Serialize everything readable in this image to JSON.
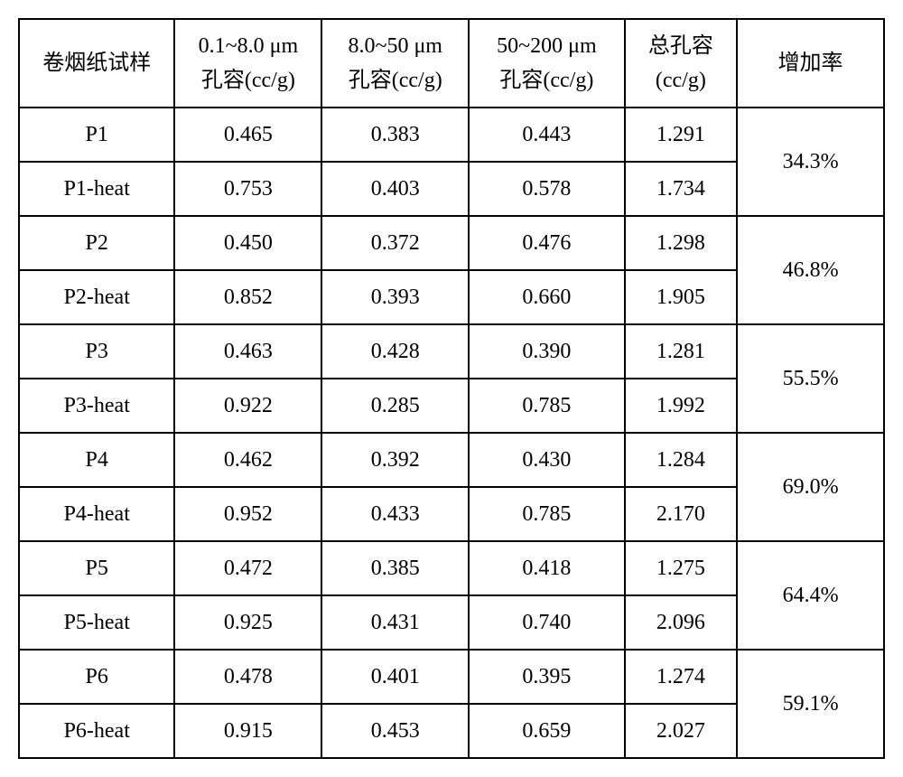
{
  "columns": {
    "sample": "卷烟纸试样",
    "range1": {
      "line1": "0.1~8.0 μm",
      "line2": "孔容(cc/g)"
    },
    "range2": {
      "line1": "8.0~50 μm",
      "line2": "孔容(cc/g)"
    },
    "range3": {
      "line1": "50~200 μm",
      "line2": "孔容(cc/g)"
    },
    "total": {
      "line1": "总孔容",
      "line2": "(cc/g)"
    },
    "rate": "增加率"
  },
  "groups": [
    {
      "rate": "34.3%",
      "rows": [
        {
          "sample": "P1",
          "r1": "0.465",
          "r2": "0.383",
          "r3": "0.443",
          "total": "1.291"
        },
        {
          "sample": "P1-heat",
          "r1": "0.753",
          "r2": "0.403",
          "r3": "0.578",
          "total": "1.734"
        }
      ]
    },
    {
      "rate": "46.8%",
      "rows": [
        {
          "sample": "P2",
          "r1": "0.450",
          "r2": "0.372",
          "r3": "0.476",
          "total": "1.298"
        },
        {
          "sample": "P2-heat",
          "r1": "0.852",
          "r2": "0.393",
          "r3": "0.660",
          "total": "1.905"
        }
      ]
    },
    {
      "rate": "55.5%",
      "rows": [
        {
          "sample": "P3",
          "r1": "0.463",
          "r2": "0.428",
          "r3": "0.390",
          "total": "1.281"
        },
        {
          "sample": "P3-heat",
          "r1": "0.922",
          "r2": "0.285",
          "r3": "0.785",
          "total": "1.992"
        }
      ]
    },
    {
      "rate": "69.0%",
      "rows": [
        {
          "sample": "P4",
          "r1": "0.462",
          "r2": "0.392",
          "r3": "0.430",
          "total": "1.284"
        },
        {
          "sample": "P4-heat",
          "r1": "0.952",
          "r2": "0.433",
          "r3": "0.785",
          "total": "2.170"
        }
      ]
    },
    {
      "rate": "64.4%",
      "rows": [
        {
          "sample": "P5",
          "r1": "0.472",
          "r2": "0.385",
          "r3": "0.418",
          "total": "1.275"
        },
        {
          "sample": "P5-heat",
          "r1": "0.925",
          "r2": "0.431",
          "r3": "0.740",
          "total": "2.096"
        }
      ]
    },
    {
      "rate": "59.1%",
      "rows": [
        {
          "sample": "P6",
          "r1": "0.478",
          "r2": "0.401",
          "r3": "0.395",
          "total": "1.274"
        },
        {
          "sample": "P6-heat",
          "r1": "0.915",
          "r2": "0.453",
          "r3": "0.659",
          "total": "2.027"
        }
      ]
    }
  ]
}
